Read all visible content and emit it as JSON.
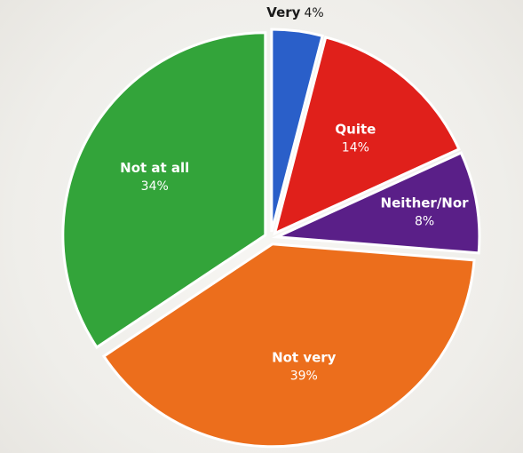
{
  "chart_data": {
    "type": "pie",
    "title": "",
    "slices": [
      {
        "label": "Very",
        "value": 4,
        "value_label": "4%",
        "color": "#2a5fc9"
      },
      {
        "label": "Quite",
        "value": 14,
        "value_label": "14%",
        "color": "#e0201b"
      },
      {
        "label": "Neither/Nor",
        "value": 8,
        "value_label": "8%",
        "color": "#5a1f88"
      },
      {
        "label": "Not very",
        "value": 39,
        "value_label": "39%",
        "color": "#ec6e1c"
      },
      {
        "label": "Not at all",
        "value": 34,
        "value_label": "34%",
        "color": "#33a43a"
      }
    ],
    "start_angle_deg": 0,
    "direction": "clockwise",
    "exploded": true,
    "legend": "none"
  }
}
